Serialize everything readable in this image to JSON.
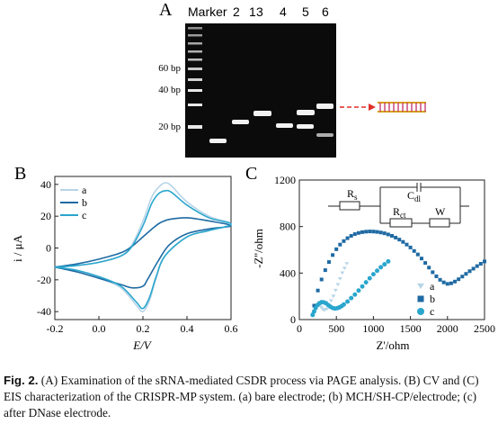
{
  "panelA": {
    "letter": "A",
    "lane_labels": [
      "Marker",
      "1",
      "2",
      "3",
      "4",
      "5",
      "6"
    ],
    "marker_labels": [
      "60 bp",
      "40 bp",
      "20 bp"
    ]
  },
  "panelB": {
    "letter": "B",
    "legend": [
      "a",
      "b",
      "c"
    ]
  },
  "panelC": {
    "letter": "C",
    "legend": [
      "a",
      "b",
      "c"
    ],
    "circuit": {
      "rs": "R",
      "rs_sub": "s",
      "cdl": "C",
      "cdl_sub": "dl",
      "rct": "R",
      "rct_sub": "ct",
      "w": "W"
    }
  },
  "colors": {
    "a": "#b7d5e8",
    "b": "#1f6aa3",
    "c": "#2aa6cd",
    "arrow": "#e0302a",
    "dna": "#d8a018"
  },
  "chart_data": [
    {
      "type": "line",
      "panel": "B",
      "xlabel": "E/V",
      "ylabel": "i / μA",
      "xlim": [
        -0.2,
        0.6
      ],
      "ylim": [
        -45,
        45
      ],
      "xticks": [
        "-0.2",
        "0.0",
        "0.2",
        "0.4",
        "0.6"
      ],
      "yticks": [
        "40",
        "20",
        "0",
        "-20",
        "-40"
      ],
      "series": [
        {
          "name": "a",
          "x": [
            -0.2,
            -0.1,
            0.0,
            0.1,
            0.15,
            0.2,
            0.24,
            0.27,
            0.3,
            0.33,
            0.4,
            0.5,
            0.6,
            0.5,
            0.4,
            0.3,
            0.26,
            0.23,
            0.2,
            0.17,
            0.1,
            0.0,
            -0.1,
            -0.2
          ],
          "y": [
            -12,
            -11,
            -9,
            -5,
            2,
            17,
            32,
            38,
            41,
            39,
            29,
            20,
            15,
            11,
            7,
            -5,
            -19,
            -33,
            -40,
            -36,
            -25,
            -19,
            -15,
            -12
          ]
        },
        {
          "name": "b",
          "x": [
            -0.2,
            -0.1,
            0.0,
            0.1,
            0.15,
            0.2,
            0.25,
            0.28,
            0.32,
            0.4,
            0.5,
            0.6,
            0.5,
            0.4,
            0.32,
            0.27,
            0.22,
            0.2,
            0.15,
            0.1,
            0.0,
            -0.1,
            -0.2
          ],
          "y": [
            -12,
            -10,
            -7,
            -3,
            1,
            7,
            13,
            16,
            18,
            19,
            17,
            14,
            12,
            9,
            2,
            -8,
            -20,
            -24,
            -25,
            -23,
            -19,
            -15,
            -12
          ]
        },
        {
          "name": "c",
          "x": [
            -0.2,
            -0.1,
            0.0,
            0.1,
            0.15,
            0.2,
            0.24,
            0.27,
            0.3,
            0.33,
            0.4,
            0.5,
            0.6,
            0.5,
            0.4,
            0.3,
            0.26,
            0.23,
            0.2,
            0.17,
            0.1,
            0.0,
            -0.1,
            -0.2
          ],
          "y": [
            -12,
            -11,
            -9,
            -5,
            1,
            14,
            28,
            34,
            36,
            35,
            27,
            19,
            15,
            11,
            7,
            -5,
            -18,
            -31,
            -38,
            -34,
            -24,
            -18,
            -14,
            -12
          ]
        }
      ]
    },
    {
      "type": "scatter",
      "panel": "C",
      "xlabel": "Z'/ohm",
      "ylabel": "-Z''/ohm",
      "xlim": [
        0,
        2500
      ],
      "ylim": [
        0,
        1200
      ],
      "xticks": [
        "0",
        "500",
        "1000",
        "1500",
        "2000",
        "2500"
      ],
      "yticks": [
        "1200",
        "800",
        "400",
        "0"
      ],
      "series": [
        {
          "name": "a",
          "marker": "triangle-down",
          "x": [
            180,
            200,
            220,
            240,
            260,
            280,
            300,
            320,
            340,
            370,
            400,
            430,
            460,
            490,
            520,
            550,
            580,
            610,
            640
          ],
          "y": [
            50,
            70,
            90,
            110,
            120,
            115,
            100,
            85,
            80,
            90,
            120,
            160,
            200,
            250,
            300,
            350,
            400,
            440,
            480
          ]
        },
        {
          "name": "b",
          "marker": "square",
          "x": [
            200,
            250,
            300,
            350,
            400,
            450,
            500,
            550,
            600,
            650,
            700,
            750,
            800,
            850,
            900,
            950,
            1000,
            1050,
            1100,
            1150,
            1200,
            1250,
            1300,
            1350,
            1400,
            1450,
            1500,
            1550,
            1600,
            1650,
            1700,
            1750,
            1800,
            1850,
            1900,
            1950,
            2000,
            2050,
            2100,
            2150,
            2200,
            2250,
            2300,
            2350,
            2400,
            2450,
            2500
          ],
          "y": [
            120,
            250,
            345,
            425,
            495,
            555,
            605,
            645,
            675,
            700,
            720,
            735,
            745,
            752,
            756,
            758,
            757,
            754,
            749,
            742,
            732,
            720,
            705,
            688,
            668,
            645,
            620,
            590,
            560,
            525,
            487,
            447,
            407,
            372,
            342,
            320,
            307,
            312,
            327,
            347,
            370,
            393,
            416,
            438,
            460,
            480,
            500
          ]
        },
        {
          "name": "c",
          "marker": "circle",
          "x": [
            180,
            200,
            220,
            245,
            270,
            300,
            330,
            360,
            390,
            420,
            450,
            480,
            510,
            540,
            570,
            600,
            650,
            700,
            750,
            800,
            850,
            900,
            950,
            1000,
            1050,
            1100,
            1150,
            1200
          ],
          "y": [
            40,
            70,
            100,
            125,
            140,
            150,
            148,
            140,
            125,
            110,
            100,
            95,
            98,
            105,
            115,
            130,
            155,
            185,
            215,
            250,
            285,
            320,
            355,
            390,
            420,
            450,
            475,
            500
          ]
        }
      ]
    }
  ],
  "caption": {
    "label": "Fig. 2.",
    "text": " (A) Examination of the sRNA-mediated CSDR process via PAGE analysis. (B) CV and (C) EIS characterization of the CRISPR-MP system. (a) bare electrode; (b) MCH/SH-CP/electrode; (c) after DNase electrode."
  }
}
